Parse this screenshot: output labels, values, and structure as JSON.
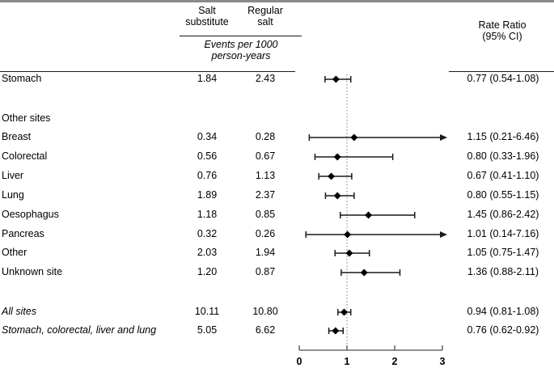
{
  "header": {
    "group1": {
      "line1": "Salt",
      "line2": "substitute"
    },
    "group2": {
      "line1": "Regular",
      "line2": "salt"
    },
    "events_caption": {
      "line1": "Events per 1000",
      "line2": "person-years"
    },
    "rate_ratio": {
      "line1": "Rate Ratio",
      "line2": "(95% CI)"
    }
  },
  "rows": [
    {
      "label": "Stomach",
      "salt_substitute": "1.84",
      "regular_salt": "2.43",
      "rate_ratio": "0.77 (0.54-1.08)"
    },
    {
      "label": "Other sites",
      "salt_substitute": "",
      "regular_salt": "",
      "rate_ratio": ""
    },
    {
      "label": "Breast",
      "salt_substitute": "0.34",
      "regular_salt": "0.28",
      "rate_ratio": "1.15 (0.21-6.46)"
    },
    {
      "label": "Colorectal",
      "salt_substitute": "0.56",
      "regular_salt": "0.67",
      "rate_ratio": "0.80 (0.33-1.96)"
    },
    {
      "label": "Liver",
      "salt_substitute": "0.76",
      "regular_salt": "1.13",
      "rate_ratio": "0.67 (0.41-1.10)"
    },
    {
      "label": "Lung",
      "salt_substitute": "1.89",
      "regular_salt": "2.37",
      "rate_ratio": "0.80 (0.55-1.15)"
    },
    {
      "label": "Oesophagus",
      "salt_substitute": "1.18",
      "regular_salt": "0.85",
      "rate_ratio": "1.45 (0.86-2.42)"
    },
    {
      "label": "Pancreas",
      "salt_substitute": "0.32",
      "regular_salt": "0.26",
      "rate_ratio": "1.01 (0.14-7.16)"
    },
    {
      "label": "Other",
      "salt_substitute": "2.03",
      "regular_salt": "1.94",
      "rate_ratio": "1.05 (0.75-1.47)"
    },
    {
      "label": "Unknown site",
      "salt_substitute": "1.20",
      "regular_salt": "0.87",
      "rate_ratio": "1.36 (0.88-2.11)"
    },
    {
      "label": "All sites",
      "salt_substitute": "10.11",
      "regular_salt": "10.80",
      "rate_ratio": "0.94 (0.81-1.08)"
    },
    {
      "label": "Stomach, colorectal, liver and lung",
      "salt_substitute": "5.05",
      "regular_salt": "6.62",
      "rate_ratio": "0.76 (0.62-0.92)"
    }
  ],
  "chart_data": {
    "type": "scatter",
    "subtype": "forest-plot",
    "title": "",
    "xlabel": "Rate Ratio",
    "axis": {
      "min": 0,
      "max": 3,
      "ticks": [
        0,
        1,
        2,
        3
      ],
      "reference_line": 1
    },
    "points": [
      {
        "label": "Stomach",
        "est": 0.77,
        "lo": 0.54,
        "hi": 1.08
      },
      {
        "label": "Breast",
        "est": 1.15,
        "lo": 0.21,
        "hi": 6.46
      },
      {
        "label": "Colorectal",
        "est": 0.8,
        "lo": 0.33,
        "hi": 1.96
      },
      {
        "label": "Liver",
        "est": 0.67,
        "lo": 0.41,
        "hi": 1.1
      },
      {
        "label": "Lung",
        "est": 0.8,
        "lo": 0.55,
        "hi": 1.15
      },
      {
        "label": "Oesophagus",
        "est": 1.45,
        "lo": 0.86,
        "hi": 2.42
      },
      {
        "label": "Pancreas",
        "est": 1.01,
        "lo": 0.14,
        "hi": 7.16
      },
      {
        "label": "Other",
        "est": 1.05,
        "lo": 0.75,
        "hi": 1.47
      },
      {
        "label": "Unknown site",
        "est": 1.36,
        "lo": 0.88,
        "hi": 2.11
      },
      {
        "label": "All sites",
        "est": 0.94,
        "lo": 0.81,
        "hi": 1.08
      },
      {
        "label": "Stomach, colorectal, liver and lung",
        "est": 0.76,
        "lo": 0.62,
        "hi": 0.92
      }
    ]
  }
}
